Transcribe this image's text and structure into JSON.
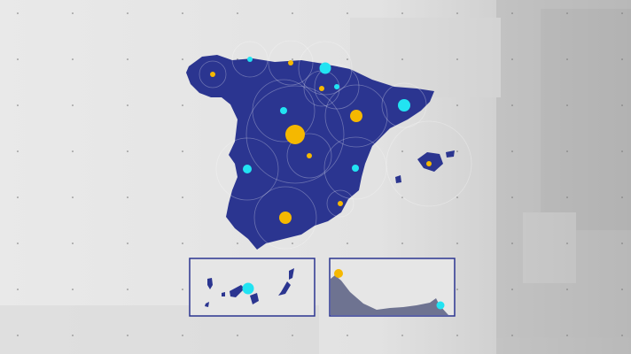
{
  "map": {
    "region": "Spain",
    "land_color": "#2b3590",
    "inset_land_color": "#6e7391",
    "background_color": "#e4e4e4",
    "marker_colors": {
      "yellow": "#f5b800",
      "cyan": "#22e3f2"
    },
    "insets": [
      "canary-islands",
      "ceuta-melilla-coast"
    ]
  }
}
